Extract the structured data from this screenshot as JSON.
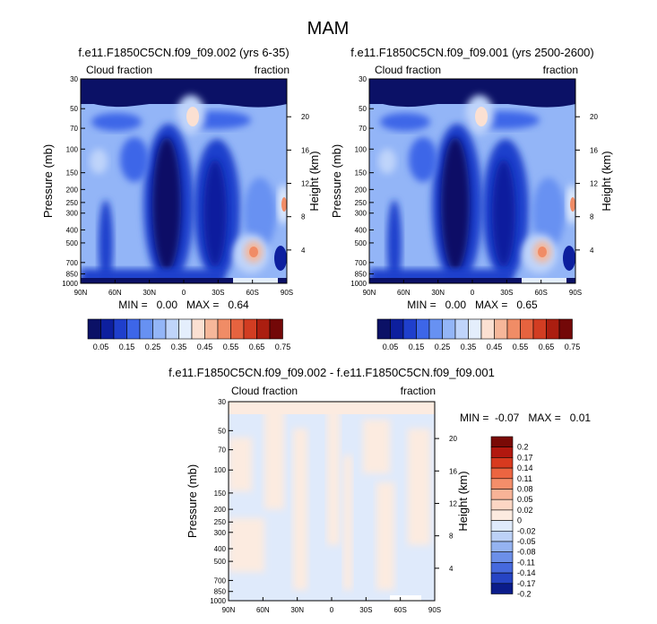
{
  "main_title": "MAM",
  "chart_data": [
    {
      "type": "heatmap",
      "title": "f.e11.F1850C5CN.f09_f09.002 (yrs 6-35)",
      "left_label": "Cloud fraction",
      "right_label": "fraction",
      "ylabel": "Pressure (mb)",
      "ylabel_right": "Height (km)",
      "x_ticks": [
        "90N",
        "60N",
        "30N",
        "0",
        "30S",
        "60S",
        "90S"
      ],
      "y_ticks": [
        "30",
        "50",
        "70",
        "100",
        "150",
        "200",
        "250",
        "300",
        "400",
        "500",
        "700",
        "850",
        "1000"
      ],
      "height_ticks": [
        "20",
        "16",
        "12",
        "8",
        "4"
      ],
      "min_max_text": "MIN =   0.00   MAX =   0.64",
      "colorbar_labels": [
        "0.05",
        "0.15",
        "0.25",
        "0.35",
        "0.45",
        "0.55",
        "0.65",
        "0.75"
      ]
    },
    {
      "type": "heatmap",
      "title": "f.e11.F1850C5CN.f09_f09.001 (yrs 2500-2600)",
      "left_label": "Cloud fraction",
      "right_label": "fraction",
      "ylabel": "Pressure (mb)",
      "ylabel_right": "Height (km)",
      "x_ticks": [
        "90N",
        "60N",
        "30N",
        "0",
        "30S",
        "60S",
        "90S"
      ],
      "y_ticks": [
        "30",
        "50",
        "70",
        "100",
        "150",
        "200",
        "250",
        "300",
        "400",
        "500",
        "700",
        "850",
        "1000"
      ],
      "height_ticks": [
        "20",
        "16",
        "12",
        "8",
        "4"
      ],
      "min_max_text": "MIN =   0.00   MAX =   0.65",
      "colorbar_labels": [
        "0.05",
        "0.15",
        "0.25",
        "0.35",
        "0.45",
        "0.55",
        "0.65",
        "0.75"
      ]
    },
    {
      "type": "heatmap",
      "title": "f.e11.F1850C5CN.f09_f09.002 - f.e11.F1850C5CN.f09_f09.001",
      "left_label": "Cloud fraction",
      "right_label": "fraction",
      "ylabel": "Pressure (mb)",
      "ylabel_right": "Height (km)",
      "x_ticks": [
        "90N",
        "60N",
        "30N",
        "0",
        "30S",
        "60S",
        "90S"
      ],
      "y_ticks": [
        "30",
        "50",
        "70",
        "100",
        "150",
        "200",
        "250",
        "300",
        "400",
        "500",
        "700",
        "850",
        "1000"
      ],
      "height_ticks": [
        "20",
        "16",
        "12",
        "8",
        "4"
      ],
      "min_max_text": "MIN =  -0.07   MAX =   0.01",
      "colorbar_labels": [
        "0.2",
        "0.17",
        "0.14",
        "0.11",
        "0.08",
        "0.05",
        "0.02",
        "0",
        "-0.02",
        "-0.05",
        "-0.08",
        "-0.11",
        "-0.14",
        "-0.17",
        "-0.2"
      ]
    }
  ],
  "colors": {
    "seq": [
      "#0b1166",
      "#0d1f9e",
      "#1f3fcc",
      "#3d66e8",
      "#6791f2",
      "#93b5f7",
      "#bfd4fa",
      "#e4eefc",
      "#fbe0d2",
      "#f6b79a",
      "#f08c66",
      "#e6633f",
      "#d23d22",
      "#ab1e10",
      "#730808"
    ],
    "div": [
      "#7a0a06",
      "#b2180f",
      "#d83a1f",
      "#ec6541",
      "#f48e6a",
      "#f8b397",
      "#fcd6c4",
      "#fcebe0",
      "#dfeafb",
      "#bcd1f7",
      "#95b3f1",
      "#6c8fe8",
      "#4669dd",
      "#2644c4",
      "#0b1c8a"
    ]
  }
}
